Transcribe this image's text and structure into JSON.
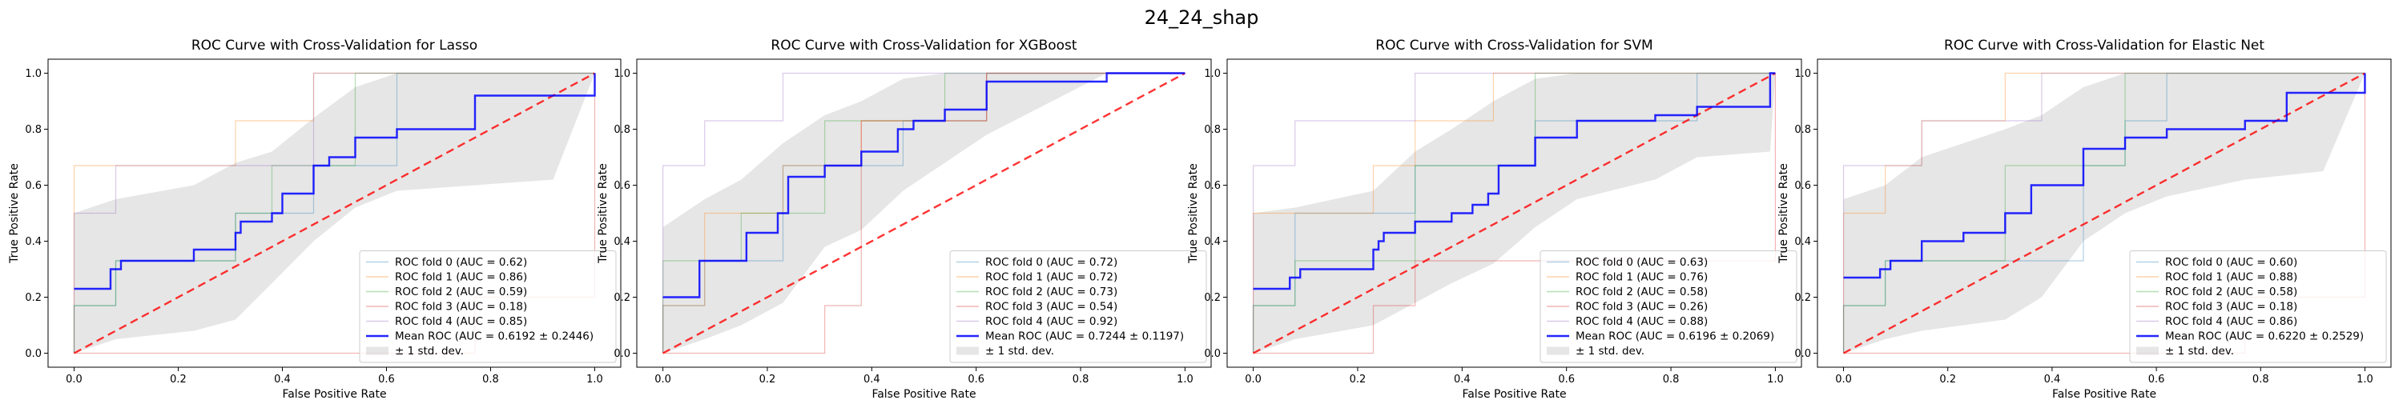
{
  "figure": {
    "suptitle": "24_24_shap"
  },
  "chart_data": [
    {
      "type": "line",
      "title": "ROC Curve with Cross-Validation for Lasso",
      "xlabel": "False Positive Rate",
      "ylabel": "True Positive Rate",
      "xlim": [
        -0.05,
        1.05
      ],
      "ylim": [
        -0.05,
        1.05
      ],
      "xticks": [
        "0.0",
        "0.2",
        "0.4",
        "0.6",
        "0.8",
        "1.0"
      ],
      "yticks": [
        "0.0",
        "0.2",
        "0.4",
        "0.6",
        "0.8",
        "1.0"
      ],
      "grid": false,
      "legend_position": "lower-right",
      "folds": [
        {
          "name": "ROC fold 0 (AUC = 0.62)",
          "color": "#1f77b4",
          "x": [
            0,
            0,
            0.08,
            0.08,
            0.31,
            0.31,
            0.46,
            0.46,
            0.62,
            0.62,
            1.0,
            1.0
          ],
          "y": [
            0,
            0.17,
            0.17,
            0.33,
            0.33,
            0.5,
            0.5,
            0.67,
            0.67,
            1.0,
            1.0,
            1.0
          ]
        },
        {
          "name": "ROC fold 1 (AUC = 0.86)",
          "color": "#ff7f0e",
          "x": [
            0,
            0,
            0.31,
            0.31,
            0.46,
            0.46,
            1.0
          ],
          "y": [
            0,
            0.67,
            0.67,
            0.83,
            0.83,
            1.0,
            1.0
          ]
        },
        {
          "name": "ROC fold 2 (AUC = 0.59)",
          "color": "#2ca02c",
          "x": [
            0,
            0,
            0.08,
            0.08,
            0.31,
            0.31,
            0.38,
            0.38,
            0.54,
            0.54,
            1.0,
            1.0
          ],
          "y": [
            0,
            0.17,
            0.17,
            0.33,
            0.33,
            0.5,
            0.5,
            0.67,
            0.67,
            1.0,
            1.0,
            1.0
          ]
        },
        {
          "name": "ROC fold 3 (AUC = 0.18)",
          "color": "#d62728",
          "x": [
            0,
            0,
            0.77,
            0.77,
            1.0,
            1.0
          ],
          "y": [
            0,
            0.0,
            0.0,
            0.2,
            0.2,
            1.0
          ]
        },
        {
          "name": "ROC fold 4 (AUC = 0.85)",
          "color": "#9467bd",
          "x": [
            0,
            0,
            0.08,
            0.08,
            0.46,
            0.46,
            1.0
          ],
          "y": [
            0,
            0.5,
            0.5,
            0.67,
            0.67,
            1.0,
            1.0
          ]
        }
      ],
      "mean": {
        "name": "Mean ROC (AUC = 0.6192 ± 0.2446)",
        "color": "#0000ff",
        "x": [
          0,
          0.07,
          0.07,
          0.09,
          0.09,
          0.23,
          0.23,
          0.31,
          0.31,
          0.32,
          0.32,
          0.38,
          0.38,
          0.4,
          0.4,
          0.46,
          0.46,
          0.49,
          0.49,
          0.54,
          0.54,
          0.62,
          0.62,
          0.77,
          0.77,
          1.0,
          1.0
        ],
        "y": [
          0.23,
          0.23,
          0.3,
          0.3,
          0.33,
          0.33,
          0.37,
          0.37,
          0.43,
          0.43,
          0.47,
          0.47,
          0.5,
          0.5,
          0.57,
          0.57,
          0.67,
          0.67,
          0.7,
          0.7,
          0.77,
          0.77,
          0.8,
          0.8,
          0.92,
          0.92,
          1.0
        ]
      },
      "band": {
        "name": "± 1 std. dev.",
        "color": "#c0c0c0",
        "x": [
          0,
          0.08,
          0.23,
          0.31,
          0.38,
          0.46,
          0.54,
          0.62,
          0.77,
          0.92,
          1.0
        ],
        "upper": [
          0.5,
          0.55,
          0.6,
          0.68,
          0.72,
          0.84,
          0.95,
          1.0,
          1.0,
          1.0,
          1.0
        ],
        "lower": [
          0.0,
          0.05,
          0.08,
          0.12,
          0.25,
          0.4,
          0.52,
          0.58,
          0.6,
          0.62,
          1.0
        ]
      },
      "chance_line": {
        "color": "#ff0000",
        "x": [
          0,
          1
        ],
        "y": [
          0,
          1
        ]
      }
    },
    {
      "type": "line",
      "title": "ROC Curve with Cross-Validation for XGBoost",
      "xlabel": "False Positive Rate",
      "ylabel": "True Positive Rate",
      "xlim": [
        -0.05,
        1.05
      ],
      "ylim": [
        -0.05,
        1.05
      ],
      "xticks": [
        "0.0",
        "0.2",
        "0.4",
        "0.6",
        "0.8",
        "1.0"
      ],
      "yticks": [
        "0.0",
        "0.2",
        "0.4",
        "0.6",
        "0.8",
        "1.0"
      ],
      "grid": false,
      "legend_position": "lower-right",
      "folds": [
        {
          "name": "ROC fold 0 (AUC = 0.72)",
          "color": "#1f77b4",
          "x": [
            0,
            0,
            0.08,
            0.08,
            0.23,
            0.23,
            0.46,
            0.46,
            0.62,
            0.62,
            1.0
          ],
          "y": [
            0,
            0.17,
            0.17,
            0.33,
            0.33,
            0.67,
            0.67,
            0.83,
            0.83,
            1.0,
            1.0
          ]
        },
        {
          "name": "ROC fold 1 (AUC = 0.72)",
          "color": "#ff7f0e",
          "x": [
            0,
            0,
            0.08,
            0.08,
            0.23,
            0.23,
            0.38,
            0.38,
            0.62,
            0.62,
            1.0
          ],
          "y": [
            0,
            0.17,
            0.17,
            0.5,
            0.5,
            0.67,
            0.67,
            0.83,
            0.83,
            1.0,
            1.0
          ]
        },
        {
          "name": "ROC fold 2 (AUC = 0.73)",
          "color": "#2ca02c",
          "x": [
            0,
            0,
            0.15,
            0.15,
            0.31,
            0.31,
            0.54,
            0.54,
            1.0
          ],
          "y": [
            0,
            0.33,
            0.33,
            0.5,
            0.5,
            0.83,
            0.83,
            1.0,
            1.0
          ]
        },
        {
          "name": "ROC fold 3 (AUC = 0.54)",
          "color": "#d62728",
          "x": [
            0,
            0,
            0.31,
            0.31,
            0.38,
            0.38,
            0.62,
            0.62,
            1.0
          ],
          "y": [
            0,
            0.0,
            0.0,
            0.17,
            0.17,
            0.83,
            0.83,
            1.0,
            1.0
          ]
        },
        {
          "name": "ROC fold 4 (AUC = 0.92)",
          "color": "#9467bd",
          "x": [
            0,
            0,
            0.08,
            0.08,
            0.23,
            0.23,
            1.0
          ],
          "y": [
            0,
            0.67,
            0.67,
            0.83,
            0.83,
            1.0,
            1.0
          ]
        }
      ],
      "mean": {
        "name": "Mean ROC (AUC = 0.7244 ± 0.1197)",
        "color": "#0000ff",
        "x": [
          0,
          0.07,
          0.07,
          0.16,
          0.16,
          0.22,
          0.22,
          0.24,
          0.24,
          0.31,
          0.31,
          0.38,
          0.38,
          0.45,
          0.45,
          0.48,
          0.48,
          0.54,
          0.54,
          0.62,
          0.62,
          0.85,
          0.85,
          1.0
        ],
        "y": [
          0.2,
          0.2,
          0.33,
          0.33,
          0.43,
          0.43,
          0.5,
          0.5,
          0.63,
          0.63,
          0.67,
          0.67,
          0.72,
          0.72,
          0.8,
          0.8,
          0.83,
          0.83,
          0.87,
          0.87,
          0.97,
          0.97,
          1.0,
          1.0
        ]
      },
      "band": {
        "name": "± 1 std. dev.",
        "color": "#c0c0c0",
        "x": [
          0,
          0.08,
          0.15,
          0.23,
          0.31,
          0.38,
          0.46,
          0.54,
          0.62,
          0.85,
          1.0
        ],
        "upper": [
          0.45,
          0.55,
          0.62,
          0.75,
          0.85,
          0.9,
          0.98,
          1.0,
          1.0,
          1.0,
          1.0
        ],
        "lower": [
          0.0,
          0.05,
          0.1,
          0.18,
          0.38,
          0.44,
          0.58,
          0.68,
          0.78,
          1.0,
          1.0
        ]
      },
      "chance_line": {
        "color": "#ff0000",
        "x": [
          0,
          1
        ],
        "y": [
          0,
          1
        ]
      }
    },
    {
      "type": "line",
      "title": "ROC Curve with Cross-Validation for SVM",
      "xlabel": "False Positive Rate",
      "ylabel": "True Positive Rate",
      "xlim": [
        -0.05,
        1.05
      ],
      "ylim": [
        -0.05,
        1.05
      ],
      "xticks": [
        "0.0",
        "0.2",
        "0.4",
        "0.6",
        "0.8",
        "1.0"
      ],
      "yticks": [
        "0.0",
        "0.2",
        "0.4",
        "0.6",
        "0.8",
        "1.0"
      ],
      "grid": false,
      "legend_position": "lower-right",
      "folds": [
        {
          "name": "ROC fold 0 (AUC = 0.63)",
          "color": "#1f77b4",
          "x": [
            0,
            0,
            0.08,
            0.08,
            0.31,
            0.31,
            0.54,
            0.54,
            0.85,
            0.85,
            1.0
          ],
          "y": [
            0,
            0.17,
            0.17,
            0.5,
            0.5,
            0.67,
            0.67,
            0.83,
            0.83,
            1.0,
            1.0
          ]
        },
        {
          "name": "ROC fold 1 (AUC = 0.76)",
          "color": "#ff7f0e",
          "x": [
            0,
            0,
            0.23,
            0.23,
            0.31,
            0.31,
            0.46,
            0.46,
            1.0
          ],
          "y": [
            0,
            0.5,
            0.5,
            0.67,
            0.67,
            0.83,
            0.83,
            1.0,
            1.0
          ]
        },
        {
          "name": "ROC fold 2 (AUC = 0.58)",
          "color": "#2ca02c",
          "x": [
            0,
            0,
            0.08,
            0.08,
            0.31,
            0.31,
            0.54,
            0.54,
            1.0
          ],
          "y": [
            0,
            0.17,
            0.17,
            0.33,
            0.33,
            0.67,
            0.67,
            1.0,
            1.0
          ]
        },
        {
          "name": "ROC fold 3 (AUC = 0.26)",
          "color": "#d62728",
          "x": [
            0,
            0,
            0.23,
            0.23,
            0.31,
            0.31,
            1.0,
            1.0
          ],
          "y": [
            0,
            0.0,
            0.0,
            0.17,
            0.17,
            0.33,
            0.33,
            1.0
          ]
        },
        {
          "name": "ROC fold 4 (AUC = 0.88)",
          "color": "#9467bd",
          "x": [
            0,
            0,
            0.08,
            0.08,
            0.31,
            0.31,
            1.0
          ],
          "y": [
            0,
            0.67,
            0.67,
            0.83,
            0.83,
            1.0,
            1.0
          ]
        }
      ],
      "mean": {
        "name": "Mean ROC (AUC = 0.6196 ± 0.2069)",
        "color": "#0000ff",
        "x": [
          0,
          0.07,
          0.07,
          0.09,
          0.09,
          0.23,
          0.23,
          0.24,
          0.24,
          0.25,
          0.25,
          0.31,
          0.31,
          0.38,
          0.38,
          0.42,
          0.42,
          0.45,
          0.45,
          0.47,
          0.47,
          0.54,
          0.54,
          0.62,
          0.62,
          0.77,
          0.77,
          0.85,
          0.85,
          0.99,
          0.99,
          1.0
        ],
        "y": [
          0.23,
          0.23,
          0.27,
          0.27,
          0.3,
          0.3,
          0.37,
          0.37,
          0.4,
          0.4,
          0.43,
          0.43,
          0.47,
          0.47,
          0.5,
          0.5,
          0.53,
          0.53,
          0.57,
          0.57,
          0.67,
          0.67,
          0.77,
          0.77,
          0.83,
          0.83,
          0.85,
          0.85,
          0.88,
          0.88,
          1.0,
          1.0
        ]
      },
      "band": {
        "name": "± 1 std. dev.",
        "color": "#c0c0c0",
        "x": [
          0,
          0.08,
          0.23,
          0.31,
          0.38,
          0.46,
          0.54,
          0.62,
          0.77,
          0.85,
          0.99,
          1.0
        ],
        "upper": [
          0.5,
          0.52,
          0.58,
          0.72,
          0.8,
          0.9,
          0.98,
          1.0,
          1.0,
          1.0,
          1.0,
          1.0
        ],
        "lower": [
          0.0,
          0.05,
          0.1,
          0.18,
          0.25,
          0.32,
          0.45,
          0.55,
          0.62,
          0.7,
          0.72,
          1.0
        ]
      },
      "chance_line": {
        "color": "#ff0000",
        "x": [
          0,
          1
        ],
        "y": [
          0,
          1
        ]
      }
    },
    {
      "type": "line",
      "title": "ROC Curve with Cross-Validation for Elastic Net",
      "xlabel": "False Positive Rate",
      "ylabel": "True Positive Rate",
      "xlim": [
        -0.05,
        1.05
      ],
      "ylim": [
        -0.05,
        1.05
      ],
      "xticks": [
        "0.0",
        "0.2",
        "0.4",
        "0.6",
        "0.8",
        "1.0"
      ],
      "yticks": [
        "0.0",
        "0.2",
        "0.4",
        "0.6",
        "0.8",
        "1.0"
      ],
      "grid": false,
      "legend_position": "lower-right",
      "folds": [
        {
          "name": "ROC fold 0 (AUC = 0.60)",
          "color": "#1f77b4",
          "x": [
            0,
            0,
            0.08,
            0.08,
            0.46,
            0.46,
            0.54,
            0.54,
            0.62,
            0.62,
            1.0
          ],
          "y": [
            0,
            0.17,
            0.17,
            0.33,
            0.33,
            0.67,
            0.67,
            0.83,
            0.83,
            1.0,
            1.0
          ]
        },
        {
          "name": "ROC fold 1 (AUC = 0.88)",
          "color": "#ff7f0e",
          "x": [
            0,
            0,
            0.08,
            0.08,
            0.15,
            0.15,
            0.31,
            0.31,
            1.0
          ],
          "y": [
            0,
            0.5,
            0.5,
            0.67,
            0.67,
            0.83,
            0.83,
            1.0,
            1.0
          ]
        },
        {
          "name": "ROC fold 2 (AUC = 0.58)",
          "color": "#2ca02c",
          "x": [
            0,
            0,
            0.08,
            0.08,
            0.31,
            0.31,
            0.54,
            0.54,
            1.0
          ],
          "y": [
            0,
            0.17,
            0.17,
            0.33,
            0.33,
            0.67,
            0.67,
            1.0,
            1.0
          ]
        },
        {
          "name": "ROC fold 3 (AUC = 0.18)",
          "color": "#d62728",
          "x": [
            0,
            0,
            0.77,
            0.77,
            1.0,
            1.0
          ],
          "y": [
            0,
            0.0,
            0.0,
            0.2,
            0.2,
            1.0
          ]
        },
        {
          "name": "ROC fold 4 (AUC = 0.86)",
          "color": "#9467bd",
          "x": [
            0,
            0,
            0.15,
            0.15,
            0.38,
            0.38,
            1.0
          ],
          "y": [
            0,
            0.67,
            0.67,
            0.83,
            0.83,
            1.0,
            1.0
          ]
        }
      ],
      "mean": {
        "name": "Mean ROC (AUC = 0.6220 ± 0.2529)",
        "color": "#0000ff",
        "x": [
          0,
          0.07,
          0.07,
          0.09,
          0.09,
          0.15,
          0.15,
          0.23,
          0.23,
          0.31,
          0.31,
          0.36,
          0.36,
          0.46,
          0.46,
          0.54,
          0.54,
          0.62,
          0.62,
          0.77,
          0.77,
          0.85,
          0.85,
          1.0,
          1.0
        ],
        "y": [
          0.27,
          0.27,
          0.3,
          0.3,
          0.33,
          0.33,
          0.4,
          0.4,
          0.43,
          0.43,
          0.5,
          0.5,
          0.6,
          0.6,
          0.73,
          0.73,
          0.77,
          0.77,
          0.8,
          0.8,
          0.83,
          0.83,
          0.93,
          0.93,
          1.0
        ]
      },
      "band": {
        "name": "± 1 std. dev.",
        "color": "#c0c0c0",
        "x": [
          0,
          0.08,
          0.15,
          0.31,
          0.38,
          0.46,
          0.54,
          0.62,
          0.77,
          0.92,
          1.0
        ],
        "upper": [
          0.55,
          0.6,
          0.7,
          0.8,
          0.85,
          0.95,
          1.0,
          1.0,
          1.0,
          1.0,
          1.0
        ],
        "lower": [
          0.0,
          0.05,
          0.08,
          0.12,
          0.2,
          0.4,
          0.5,
          0.56,
          0.62,
          0.65,
          1.0
        ]
      },
      "chance_line": {
        "color": "#ff0000",
        "x": [
          0,
          1
        ],
        "y": [
          0,
          1
        ]
      }
    }
  ]
}
